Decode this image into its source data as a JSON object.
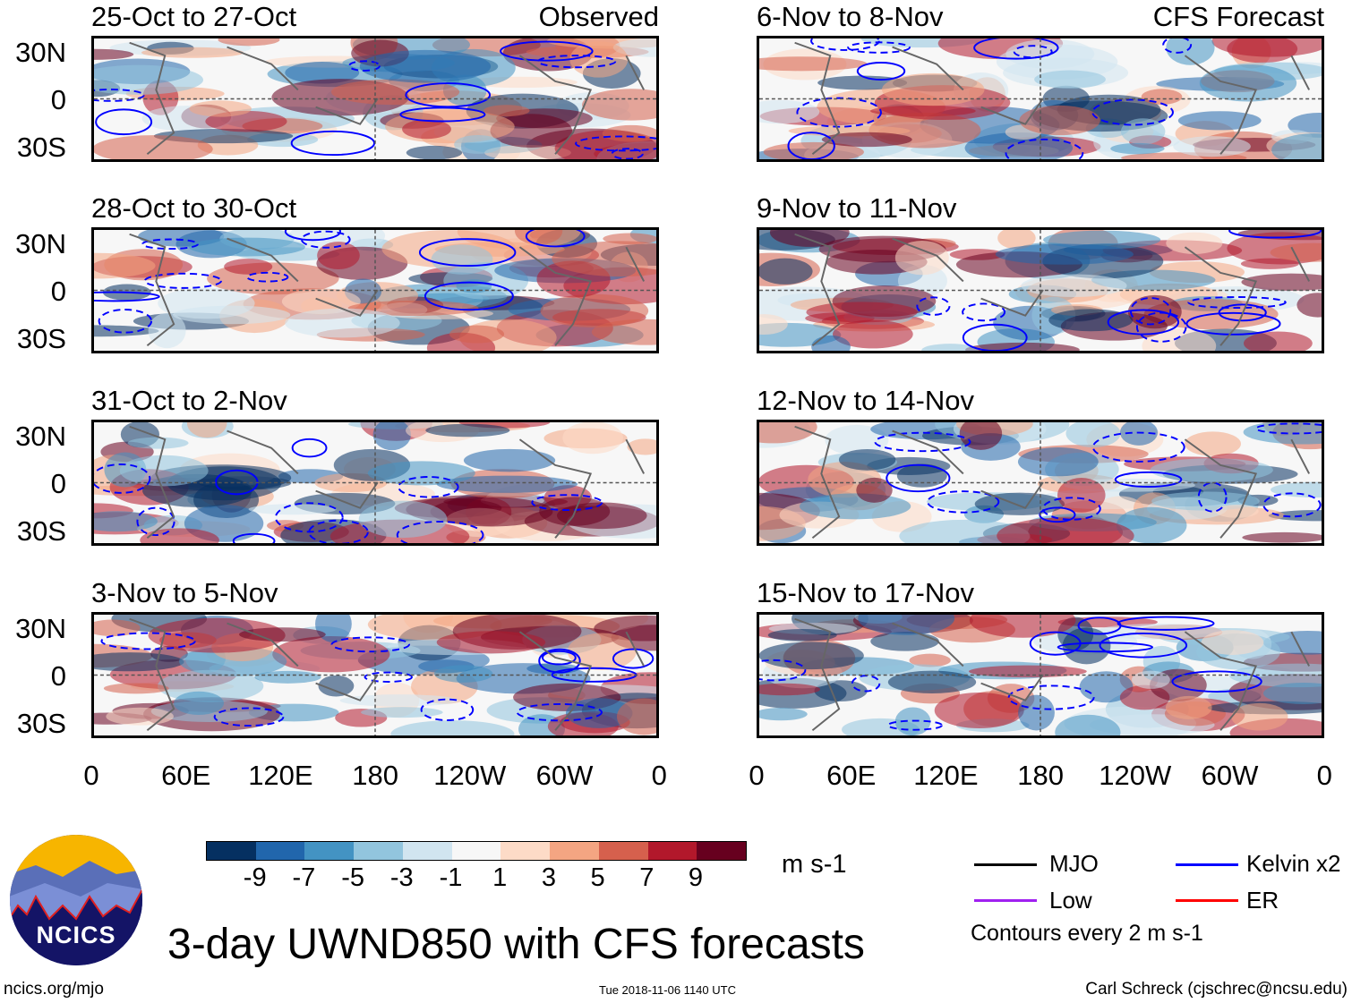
{
  "panels_left": [
    {
      "title": "25-Oct to 27-Oct",
      "tag": "Observed"
    },
    {
      "title": "28-Oct to 30-Oct"
    },
    {
      "title": "31-Oct to 2-Nov"
    },
    {
      "title": "3-Nov to 5-Nov"
    }
  ],
  "panels_right": [
    {
      "title": "6-Nov to 8-Nov",
      "tag": "CFS Forecast"
    },
    {
      "title": "9-Nov to 11-Nov"
    },
    {
      "title": "12-Nov to 14-Nov"
    },
    {
      "title": "15-Nov to 17-Nov"
    }
  ],
  "lat_labels": [
    "30N",
    "0",
    "30S"
  ],
  "lon_labels": [
    "0",
    "60E",
    "120E",
    "180",
    "120W",
    "60W",
    "0"
  ],
  "colorbar": {
    "colors": [
      "#053061",
      "#2166ac",
      "#4393c3",
      "#92c5de",
      "#d1e5f0",
      "#f7f7f7",
      "#fddbc7",
      "#f4a582",
      "#d6604d",
      "#b2182b",
      "#67001f"
    ],
    "labels": [
      "-9",
      "-7",
      "-5",
      "-3",
      "-1",
      "1",
      "3",
      "5",
      "7",
      "9"
    ],
    "units": "m s-1"
  },
  "legend": {
    "items": [
      {
        "label": "MJO",
        "color": "#000000"
      },
      {
        "label": "Kelvin x2",
        "color": "#0000ff"
      },
      {
        "label": "Low",
        "color": "#a020f0"
      },
      {
        "label": "ER",
        "color": "#ff0000"
      }
    ],
    "note": "Contours every 2 m s-1"
  },
  "logo_text": "NCICS",
  "title": "3-day UWND850 with CFS forecasts",
  "footer": {
    "left": "ncics.org/mjo",
    "center": "Tue 2018-11-06 1140 UTC",
    "right": "Carl Schreck (cjschrec@ncsu.edu)"
  }
}
